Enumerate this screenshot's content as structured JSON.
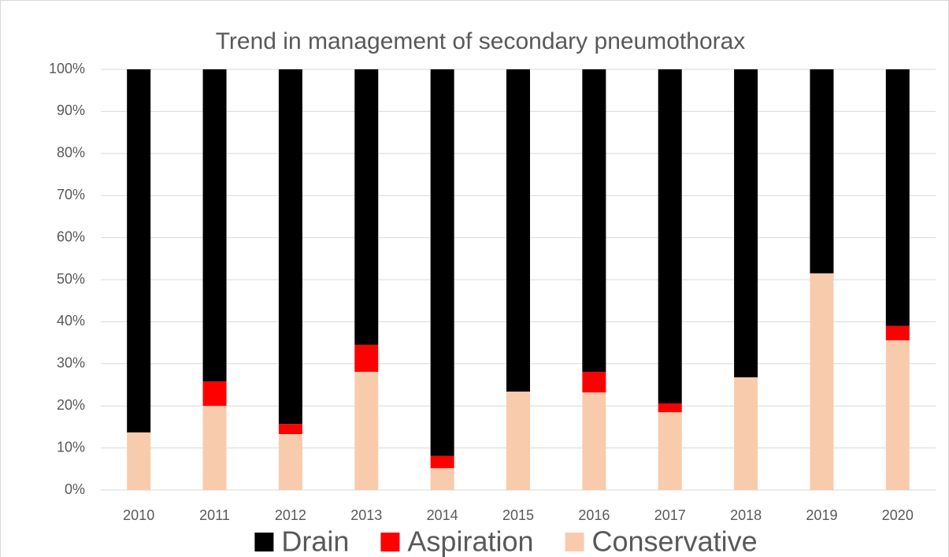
{
  "chart_data": {
    "type": "stacked_bar",
    "title": "Trend in management of secondary pneumothorax",
    "categories": [
      "2010",
      "2011",
      "2012",
      "2013",
      "2014",
      "2015",
      "2016",
      "2017",
      "2018",
      "2019",
      "2020"
    ],
    "series": [
      {
        "name": "Drain",
        "color": "#000000",
        "values": [
          86.3,
          74.2,
          84.3,
          65.5,
          91.9,
          76.6,
          71.9,
          79.4,
          73.2,
          48.5,
          61.0
        ]
      },
      {
        "name": "Aspiration",
        "color": "#ff0000",
        "values": [
          0,
          5.8,
          2.4,
          6.4,
          2.9,
          0,
          4.9,
          2.1,
          0,
          0,
          3.4
        ]
      },
      {
        "name": "Conservative",
        "color": "#f8cbad",
        "values": [
          13.7,
          20.0,
          13.3,
          28.1,
          5.2,
          23.4,
          23.2,
          18.5,
          26.8,
          51.5,
          35.6
        ]
      }
    ],
    "ylim": [
      0,
      100
    ],
    "yticks": [
      {
        "value": 0,
        "label": "0%"
      },
      {
        "value": 10,
        "label": "10%"
      },
      {
        "value": 20,
        "label": "20%"
      },
      {
        "value": 30,
        "label": "30%"
      },
      {
        "value": 40,
        "label": "40%"
      },
      {
        "value": 50,
        "label": "50%"
      },
      {
        "value": 60,
        "label": "60%"
      },
      {
        "value": 70,
        "label": "70%"
      },
      {
        "value": 80,
        "label": "80%"
      },
      {
        "value": 90,
        "label": "90%"
      },
      {
        "value": 100,
        "label": "100%"
      }
    ],
    "grid": true,
    "legend": "bottom"
  }
}
